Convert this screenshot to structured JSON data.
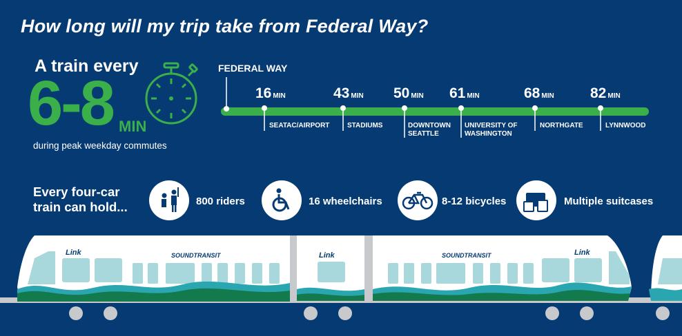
{
  "title": "How long will my trip take from Federal Way?",
  "frequency": {
    "line1": "A train every",
    "range": "6-8",
    "unit": "MIN",
    "note": "during peak weekday commutes",
    "icon": "stopwatch-icon"
  },
  "route": {
    "origin": "FEDERAL WAY",
    "unit": "MIN",
    "color": "#3bb04a",
    "stops": [
      {
        "minutes": "16",
        "name": "SEATAC/AIRPORT"
      },
      {
        "minutes": "43",
        "name": "STADIUMS"
      },
      {
        "minutes": "50",
        "name": "DOWNTOWN SEATTLE"
      },
      {
        "minutes": "61",
        "name": "UNIVERSITY OF WASHINGTON"
      },
      {
        "minutes": "68",
        "name": "NORTHGATE"
      },
      {
        "minutes": "82",
        "name": "LYNNWOOD"
      }
    ]
  },
  "capacity": {
    "heading_line1": "Every four-car",
    "heading_line2": "train can hold...",
    "items": [
      {
        "icon": "riders-icon",
        "label": "800 riders"
      },
      {
        "icon": "wheelchair-icon",
        "label": "16 wheelchairs"
      },
      {
        "icon": "bicycle-icon",
        "label": "8-12 bicycles"
      },
      {
        "icon": "suitcases-icon",
        "label": "Multiple suitcases"
      }
    ]
  },
  "train": {
    "brand_link": "Link",
    "brand_operator": "SOUNDTRANSIT"
  },
  "colors": {
    "background": "#063a73",
    "accent": "#3bb04a",
    "window": "#a8d8dc",
    "wave_teal": "#2aa6b0",
    "wave_green": "#137a4e"
  }
}
